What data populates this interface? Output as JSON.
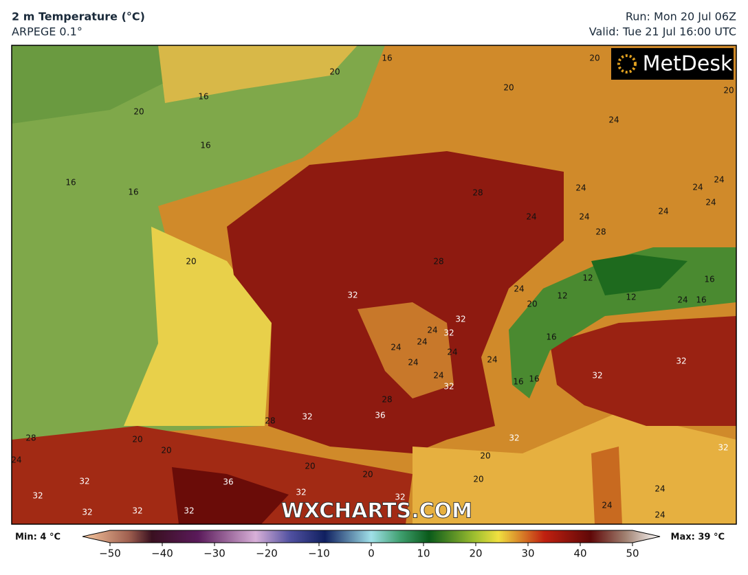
{
  "header": {
    "title": "2 m Temperature (°C)",
    "subtitle": "ARPEGE 0.1°",
    "run": "Run: Mon 20 Jul 06Z",
    "valid": "Valid: Tue 21 Jul 16:00 UTC"
  },
  "logo": "MetDesk",
  "watermark": "WXCHARTS.COM",
  "contour_labels": [
    16,
    20,
    16,
    20,
    16,
    16,
    16,
    20,
    20,
    20,
    24,
    28,
    24,
    24,
    24,
    24,
    24,
    24,
    24,
    20,
    28,
    28,
    32,
    32,
    32,
    24,
    24,
    24,
    24,
    24,
    24,
    32,
    24,
    24,
    20,
    16,
    16,
    16,
    32,
    32,
    28,
    36,
    32,
    28,
    28,
    20,
    20,
    32,
    20,
    20,
    20,
    20,
    32,
    36,
    32,
    32,
    32,
    32,
    32,
    32,
    24,
    24,
    24,
    32,
    16,
    24,
    12,
    12,
    12,
    16,
    24
  ],
  "colorbar": {
    "min_label": "Min: 4 °C",
    "max_label": "Max: 39 °C",
    "range": [
      -50,
      50
    ],
    "ticks": [
      {
        "value": -50,
        "label": "−50"
      },
      {
        "value": -40,
        "label": "−40"
      },
      {
        "value": -30,
        "label": "−30"
      },
      {
        "value": -20,
        "label": "−20"
      },
      {
        "value": -10,
        "label": "−10"
      },
      0,
      10,
      20,
      30,
      40,
      50
    ]
  }
}
